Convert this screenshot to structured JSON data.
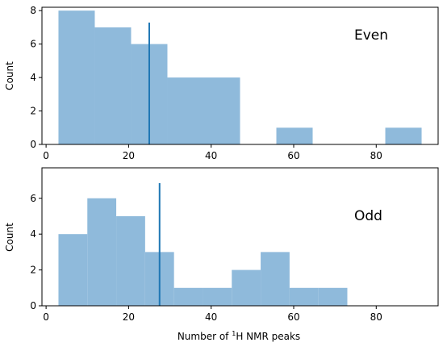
{
  "chart_data": [
    {
      "type": "bar",
      "title": "",
      "panel_label": "Even",
      "xlabel": "",
      "ylabel": "Count",
      "xlim": [
        -1,
        95
      ],
      "ylim": [
        0,
        8.2
      ],
      "xticks": [
        0,
        20,
        40,
        60,
        80
      ],
      "yticks": [
        0,
        2,
        4,
        6,
        8
      ],
      "bins": [
        {
          "x0": 3.0,
          "x1": 11.8,
          "count": 8
        },
        {
          "x0": 11.8,
          "x1": 20.6,
          "count": 7
        },
        {
          "x0": 20.6,
          "x1": 29.4,
          "count": 6
        },
        {
          "x0": 29.4,
          "x1": 38.2,
          "count": 4
        },
        {
          "x0": 38.2,
          "x1": 47.0,
          "count": 4
        },
        {
          "x0": 47.0,
          "x1": 55.8,
          "count": 0
        },
        {
          "x0": 55.8,
          "x1": 64.6,
          "count": 1
        },
        {
          "x0": 64.6,
          "x1": 73.4,
          "count": 0
        },
        {
          "x0": 73.4,
          "x1": 82.2,
          "count": 0
        },
        {
          "x0": 82.2,
          "x1": 91.0,
          "count": 1
        }
      ],
      "vline": 25,
      "grid": false,
      "colors": {
        "bars": "#8fbadb",
        "line": "#1f77b4"
      }
    },
    {
      "type": "bar",
      "title": "",
      "panel_label": "Odd",
      "xlabel": "Number of ",
      "xlabel_sup": "1",
      "xlabel_suffix": "H NMR peaks",
      "ylabel": "Count",
      "xlim": [
        -1,
        95
      ],
      "ylim": [
        0,
        7.7
      ],
      "xticks": [
        0,
        20,
        40,
        60,
        80
      ],
      "yticks": [
        0,
        2,
        4,
        6
      ],
      "bins": [
        {
          "x0": 3.0,
          "x1": 10.0,
          "count": 4
        },
        {
          "x0": 10.0,
          "x1": 17.0,
          "count": 6
        },
        {
          "x0": 17.0,
          "x1": 24.0,
          "count": 5
        },
        {
          "x0": 24.0,
          "x1": 31.0,
          "count": 3
        },
        {
          "x0": 31.0,
          "x1": 38.0,
          "count": 1
        },
        {
          "x0": 38.0,
          "x1": 45.0,
          "count": 1
        },
        {
          "x0": 45.0,
          "x1": 52.0,
          "count": 2
        },
        {
          "x0": 52.0,
          "x1": 59.0,
          "count": 3
        },
        {
          "x0": 59.0,
          "x1": 66.0,
          "count": 1
        },
        {
          "x0": 66.0,
          "x1": 73.0,
          "count": 1
        }
      ],
      "vline": 27.5,
      "grid": false,
      "colors": {
        "bars": "#8fbadb",
        "line": "#1f77b4"
      }
    }
  ]
}
